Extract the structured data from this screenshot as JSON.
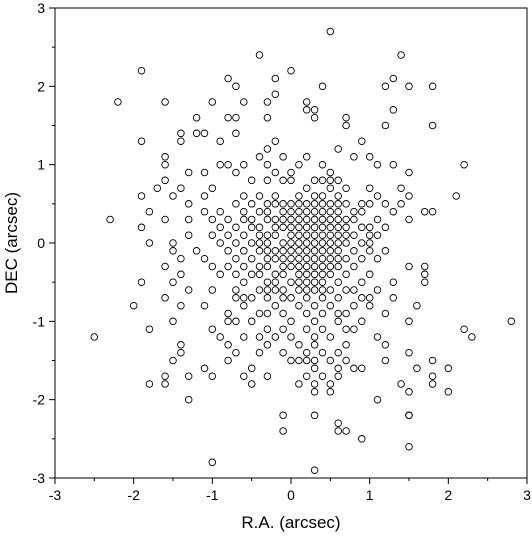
{
  "chart_data": {
    "type": "scatter",
    "title": "",
    "xlabel": "R.A. (arcsec)",
    "ylabel": "DEC (arcsec)",
    "xlim": [
      -3,
      3
    ],
    "ylim": [
      -3,
      3
    ],
    "x_ticks": [
      "-3",
      "-2",
      "-1",
      "0",
      "1",
      "2",
      "3"
    ],
    "y_ticks": [
      "-3",
      "-2",
      "-1",
      "0",
      "1",
      "2",
      "3"
    ],
    "grid": false,
    "legend": "none",
    "marker": "open-circle",
    "colors": {
      "marker": "#000000",
      "axes": "#000000",
      "background": "#ffffff"
    },
    "points": [
      [
        0.5,
        2.7
      ],
      [
        -0.4,
        2.4
      ],
      [
        1.4,
        2.4
      ],
      [
        -1.9,
        2.2
      ],
      [
        0.0,
        2.2
      ],
      [
        -2.2,
        1.8
      ],
      [
        -0.8,
        2.1
      ],
      [
        -0.2,
        2.1
      ],
      [
        1.3,
        2.1
      ],
      [
        -0.7,
        2.0
      ],
      [
        0.4,
        2.0
      ],
      [
        1.2,
        2.0
      ],
      [
        1.5,
        2.0
      ],
      [
        1.8,
        2.0
      ],
      [
        -0.2,
        1.9
      ],
      [
        -0.6,
        1.8
      ],
      [
        -1.6,
        1.8
      ],
      [
        -1.0,
        1.8
      ],
      [
        -0.3,
        1.8
      ],
      [
        0.2,
        1.8
      ],
      [
        0.2,
        1.7
      ],
      [
        0.3,
        1.7
      ],
      [
        1.3,
        1.7
      ],
      [
        -0.8,
        1.6
      ],
      [
        -0.7,
        1.6
      ],
      [
        -0.3,
        1.6
      ],
      [
        -1.2,
        1.6
      ],
      [
        0.3,
        1.6
      ],
      [
        0.7,
        1.6
      ],
      [
        -1.9,
        1.3
      ],
      [
        -1.4,
        1.4
      ],
      [
        -1.2,
        1.4
      ],
      [
        -1.1,
        1.4
      ],
      [
        -0.7,
        1.4
      ],
      [
        0.7,
        1.5
      ],
      [
        1.2,
        1.5
      ],
      [
        1.8,
        1.5
      ],
      [
        -1.4,
        1.3
      ],
      [
        -0.9,
        1.3
      ],
      [
        -0.2,
        1.3
      ],
      [
        0.9,
        1.3
      ],
      [
        -0.3,
        1.2
      ],
      [
        0.6,
        1.2
      ],
      [
        -0.4,
        1.1
      ],
      [
        -0.1,
        1.1
      ],
      [
        0.2,
        1.1
      ],
      [
        0.8,
        1.1
      ],
      [
        1.0,
        1.1
      ],
      [
        -1.6,
        1.1
      ],
      [
        -1.6,
        1.0
      ],
      [
        -0.6,
        1.0
      ],
      [
        -0.3,
        1.0
      ],
      [
        0.1,
        1.0
      ],
      [
        0.4,
        1.0
      ],
      [
        -0.8,
        1.0
      ],
      [
        1.1,
        1.0
      ],
      [
        1.3,
        1.0
      ],
      [
        2.2,
        1.0
      ],
      [
        -0.9,
        1.0
      ],
      [
        -0.7,
        0.9
      ],
      [
        -0.2,
        0.9
      ],
      [
        0.0,
        0.9
      ],
      [
        0.5,
        0.9
      ],
      [
        -1.3,
        0.9
      ],
      [
        -1.1,
        0.9
      ],
      [
        1.5,
        0.9
      ],
      [
        -1.6,
        0.8
      ],
      [
        -0.5,
        0.8
      ],
      [
        -0.3,
        0.8
      ],
      [
        -0.1,
        0.8
      ],
      [
        0.0,
        0.8
      ],
      [
        0.3,
        0.8
      ],
      [
        0.4,
        0.8
      ],
      [
        0.5,
        0.8
      ],
      [
        0.6,
        0.8
      ],
      [
        -1.7,
        0.7
      ],
      [
        -1.4,
        0.7
      ],
      [
        -1.0,
        0.7
      ],
      [
        0.2,
        0.7
      ],
      [
        0.5,
        0.7
      ],
      [
        0.7,
        0.7
      ],
      [
        1.0,
        0.7
      ],
      [
        1.4,
        0.7
      ],
      [
        -0.6,
        0.6
      ],
      [
        -0.4,
        0.6
      ],
      [
        -0.2,
        0.6
      ],
      [
        0.1,
        0.6
      ],
      [
        0.3,
        0.6
      ],
      [
        0.4,
        0.6
      ],
      [
        0.6,
        0.6
      ],
      [
        -1.9,
        0.6
      ],
      [
        -1.5,
        0.6
      ],
      [
        -1.1,
        0.6
      ],
      [
        1.1,
        0.6
      ],
      [
        1.5,
        0.6
      ],
      [
        2.1,
        0.6
      ],
      [
        -0.7,
        0.5
      ],
      [
        -0.5,
        0.5
      ],
      [
        -0.3,
        0.5
      ],
      [
        -0.2,
        0.5
      ],
      [
        -0.1,
        0.5
      ],
      [
        0.0,
        0.5
      ],
      [
        0.1,
        0.5
      ],
      [
        0.2,
        0.5
      ],
      [
        0.3,
        0.5
      ],
      [
        0.4,
        0.5
      ],
      [
        0.5,
        0.5
      ],
      [
        0.6,
        0.5
      ],
      [
        0.7,
        0.5
      ],
      [
        -1.3,
        0.5
      ],
      [
        0.9,
        0.5
      ],
      [
        1.0,
        0.5
      ],
      [
        1.2,
        0.5
      ],
      [
        1.4,
        0.5
      ],
      [
        -0.9,
        0.4
      ],
      [
        -0.6,
        0.4
      ],
      [
        -0.4,
        0.4
      ],
      [
        -0.3,
        0.4
      ],
      [
        -0.1,
        0.4
      ],
      [
        0.0,
        0.4
      ],
      [
        0.1,
        0.4
      ],
      [
        0.2,
        0.4
      ],
      [
        0.3,
        0.4
      ],
      [
        0.4,
        0.4
      ],
      [
        0.5,
        0.4
      ],
      [
        0.6,
        0.4
      ],
      [
        0.8,
        0.4
      ],
      [
        0.9,
        0.4
      ],
      [
        -1.8,
        0.4
      ],
      [
        -1.1,
        0.4
      ],
      [
        1.3,
        0.4
      ],
      [
        1.7,
        0.4
      ],
      [
        1.8,
        0.4
      ],
      [
        -0.8,
        0.3
      ],
      [
        -0.6,
        0.3
      ],
      [
        -0.5,
        0.3
      ],
      [
        -0.3,
        0.3
      ],
      [
        -0.2,
        0.3
      ],
      [
        -0.1,
        0.3
      ],
      [
        0.0,
        0.3
      ],
      [
        0.1,
        0.3
      ],
      [
        0.2,
        0.3
      ],
      [
        0.3,
        0.3
      ],
      [
        0.4,
        0.3
      ],
      [
        0.5,
        0.3
      ],
      [
        0.6,
        0.3
      ],
      [
        0.7,
        0.3
      ],
      [
        0.8,
        0.3
      ],
      [
        -2.3,
        0.3
      ],
      [
        -1.6,
        0.3
      ],
      [
        -1.3,
        0.3
      ],
      [
        -1.0,
        0.3
      ],
      [
        1.1,
        0.3
      ],
      [
        1.5,
        0.3
      ],
      [
        -0.7,
        0.2
      ],
      [
        -0.5,
        0.2
      ],
      [
        -0.4,
        0.2
      ],
      [
        -0.2,
        0.2
      ],
      [
        -0.1,
        0.2
      ],
      [
        0.0,
        0.2
      ],
      [
        0.1,
        0.2
      ],
      [
        0.2,
        0.2
      ],
      [
        0.3,
        0.2
      ],
      [
        0.4,
        0.2
      ],
      [
        0.5,
        0.2
      ],
      [
        0.6,
        0.2
      ],
      [
        0.7,
        0.2
      ],
      [
        0.9,
        0.2
      ],
      [
        -1.9,
        0.2
      ],
      [
        -0.9,
        0.2
      ],
      [
        1.0,
        0.2
      ],
      [
        1.2,
        0.2
      ],
      [
        -0.8,
        0.1
      ],
      [
        -0.6,
        0.1
      ],
      [
        -0.4,
        0.1
      ],
      [
        -0.3,
        0.1
      ],
      [
        -0.2,
        0.1
      ],
      [
        0.0,
        0.1
      ],
      [
        0.1,
        0.1
      ],
      [
        0.2,
        0.1
      ],
      [
        0.3,
        0.1
      ],
      [
        0.4,
        0.1
      ],
      [
        0.5,
        0.1
      ],
      [
        0.6,
        0.1
      ],
      [
        0.7,
        0.1
      ],
      [
        0.8,
        0.1
      ],
      [
        -1.3,
        0.1
      ],
      [
        -1.0,
        0.1
      ],
      [
        1.0,
        0.1
      ],
      [
        1.1,
        0.1
      ],
      [
        -0.7,
        0.0
      ],
      [
        -0.5,
        0.0
      ],
      [
        -0.4,
        0.0
      ],
      [
        -0.3,
        0.0
      ],
      [
        -0.1,
        0.0
      ],
      [
        0.0,
        0.0
      ],
      [
        0.1,
        0.0
      ],
      [
        0.2,
        0.0
      ],
      [
        0.3,
        0.0
      ],
      [
        0.4,
        0.0
      ],
      [
        0.5,
        0.0
      ],
      [
        0.6,
        0.0
      ],
      [
        0.7,
        0.0
      ],
      [
        0.9,
        0.0
      ],
      [
        -1.8,
        0.0
      ],
      [
        -1.5,
        0.0
      ],
      [
        -0.9,
        0.0
      ],
      [
        1.0,
        0.0
      ],
      [
        -0.8,
        -0.1
      ],
      [
        -0.6,
        -0.1
      ],
      [
        -0.4,
        -0.1
      ],
      [
        -0.3,
        -0.1
      ],
      [
        -0.2,
        -0.1
      ],
      [
        -0.1,
        -0.1
      ],
      [
        0.0,
        -0.1
      ],
      [
        0.1,
        -0.1
      ],
      [
        0.2,
        -0.1
      ],
      [
        0.3,
        -0.1
      ],
      [
        0.4,
        -0.1
      ],
      [
        0.5,
        -0.1
      ],
      [
        0.6,
        -0.1
      ],
      [
        0.8,
        -0.1
      ],
      [
        -1.5,
        -0.1
      ],
      [
        -1.2,
        -0.1
      ],
      [
        1.0,
        -0.1
      ],
      [
        1.2,
        -0.1
      ],
      [
        -0.7,
        -0.2
      ],
      [
        -0.5,
        -0.2
      ],
      [
        -0.3,
        -0.2
      ],
      [
        -0.2,
        -0.2
      ],
      [
        -0.1,
        -0.2
      ],
      [
        0.0,
        -0.2
      ],
      [
        0.1,
        -0.2
      ],
      [
        0.2,
        -0.2
      ],
      [
        0.3,
        -0.2
      ],
      [
        0.4,
        -0.2
      ],
      [
        0.5,
        -0.2
      ],
      [
        0.6,
        -0.2
      ],
      [
        0.7,
        -0.2
      ],
      [
        -1.4,
        -0.2
      ],
      [
        -1.1,
        -0.2
      ],
      [
        0.9,
        -0.2
      ],
      [
        1.1,
        -0.2
      ],
      [
        -0.6,
        -0.3
      ],
      [
        -0.4,
        -0.3
      ],
      [
        -0.3,
        -0.3
      ],
      [
        -0.1,
        -0.3
      ],
      [
        0.0,
        -0.3
      ],
      [
        0.1,
        -0.3
      ],
      [
        0.2,
        -0.3
      ],
      [
        0.3,
        -0.3
      ],
      [
        0.4,
        -0.3
      ],
      [
        0.5,
        -0.3
      ],
      [
        0.6,
        -0.3
      ],
      [
        0.8,
        -0.3
      ],
      [
        -1.6,
        -0.3
      ],
      [
        -1.0,
        -0.3
      ],
      [
        -0.8,
        -0.3
      ],
      [
        1.5,
        -0.3
      ],
      [
        1.7,
        -0.3
      ],
      [
        -0.7,
        -0.4
      ],
      [
        -0.5,
        -0.4
      ],
      [
        -0.4,
        -0.4
      ],
      [
        -0.2,
        -0.4
      ],
      [
        -0.1,
        -0.4
      ],
      [
        0.1,
        -0.4
      ],
      [
        0.2,
        -0.4
      ],
      [
        0.3,
        -0.4
      ],
      [
        0.4,
        -0.4
      ],
      [
        0.5,
        -0.4
      ],
      [
        0.7,
        -0.4
      ],
      [
        -1.4,
        -0.4
      ],
      [
        -0.9,
        -0.4
      ],
      [
        1.0,
        -0.4
      ],
      [
        1.7,
        -0.4
      ],
      [
        -0.6,
        -0.5
      ],
      [
        -0.3,
        -0.5
      ],
      [
        -0.2,
        -0.5
      ],
      [
        0.0,
        -0.5
      ],
      [
        0.1,
        -0.5
      ],
      [
        0.2,
        -0.5
      ],
      [
        0.3,
        -0.5
      ],
      [
        0.4,
        -0.5
      ],
      [
        0.6,
        -0.5
      ],
      [
        -1.9,
        -0.5
      ],
      [
        -1.5,
        -0.5
      ],
      [
        0.9,
        -0.5
      ],
      [
        1.3,
        -0.5
      ],
      [
        1.7,
        -0.5
      ],
      [
        -0.7,
        -0.6
      ],
      [
        -0.4,
        -0.6
      ],
      [
        -0.3,
        -0.6
      ],
      [
        -0.2,
        -0.6
      ],
      [
        -0.1,
        -0.6
      ],
      [
        0.1,
        -0.6
      ],
      [
        0.2,
        -0.6
      ],
      [
        0.3,
        -0.6
      ],
      [
        0.4,
        -0.6
      ],
      [
        0.5,
        -0.6
      ],
      [
        0.7,
        -0.6
      ],
      [
        0.8,
        -0.6
      ],
      [
        -1.3,
        -0.6
      ],
      [
        -1.0,
        -0.6
      ],
      [
        1.1,
        -0.6
      ],
      [
        -0.7,
        -0.7
      ],
      [
        -0.5,
        -0.7
      ],
      [
        -0.3,
        -0.7
      ],
      [
        -0.1,
        -0.7
      ],
      [
        0.0,
        -0.7
      ],
      [
        0.2,
        -0.7
      ],
      [
        0.4,
        -0.7
      ],
      [
        0.6,
        -0.7
      ],
      [
        -1.6,
        -0.7
      ],
      [
        -0.6,
        -0.7
      ],
      [
        0.9,
        -0.7
      ],
      [
        1.0,
        -0.7
      ],
      [
        1.3,
        -0.7
      ],
      [
        -0.6,
        -0.8
      ],
      [
        -0.2,
        -0.8
      ],
      [
        0.1,
        -0.8
      ],
      [
        0.3,
        -0.8
      ],
      [
        0.5,
        -0.8
      ],
      [
        0.8,
        -0.8
      ],
      [
        -2.0,
        -0.8
      ],
      [
        -1.4,
        -0.8
      ],
      [
        -1.1,
        -0.8
      ],
      [
        1.0,
        -0.8
      ],
      [
        1.6,
        -0.8
      ],
      [
        -0.8,
        -0.9
      ],
      [
        -0.4,
        -0.9
      ],
      [
        -0.3,
        -0.9
      ],
      [
        -0.1,
        -0.9
      ],
      [
        0.2,
        -0.9
      ],
      [
        0.4,
        -0.9
      ],
      [
        0.6,
        -0.9
      ],
      [
        0.7,
        -0.9
      ],
      [
        1.2,
        -0.9
      ],
      [
        -0.7,
        -1.0
      ],
      [
        -0.5,
        -1.0
      ],
      [
        0.0,
        -1.0
      ],
      [
        0.3,
        -1.0
      ],
      [
        0.6,
        -1.0
      ],
      [
        -1.5,
        -1.0
      ],
      [
        -0.8,
        -1.0
      ],
      [
        0.9,
        -1.0
      ],
      [
        1.5,
        -1.0
      ],
      [
        2.8,
        -1.0
      ],
      [
        -1.0,
        -1.1
      ],
      [
        -0.3,
        -1.1
      ],
      [
        -0.1,
        -1.1
      ],
      [
        0.2,
        -1.1
      ],
      [
        0.4,
        -1.1
      ],
      [
        0.7,
        -1.1
      ],
      [
        -1.8,
        -1.1
      ],
      [
        0.8,
        -1.1
      ],
      [
        2.2,
        -1.1
      ],
      [
        -0.6,
        -1.2
      ],
      [
        -0.4,
        -1.2
      ],
      [
        -0.2,
        -1.2
      ],
      [
        0.0,
        -1.2
      ],
      [
        0.3,
        -1.2
      ],
      [
        0.5,
        -1.2
      ],
      [
        -2.5,
        -1.2
      ],
      [
        -0.9,
        -1.2
      ],
      [
        1.1,
        -1.2
      ],
      [
        2.3,
        -1.2
      ],
      [
        -0.8,
        -1.3
      ],
      [
        -0.3,
        -1.3
      ],
      [
        0.1,
        -1.3
      ],
      [
        0.3,
        -1.3
      ],
      [
        0.7,
        -1.3
      ],
      [
        -1.4,
        -1.3
      ],
      [
        1.2,
        -1.3
      ],
      [
        -0.7,
        -1.4
      ],
      [
        -0.1,
        -1.4
      ],
      [
        0.2,
        -1.4
      ],
      [
        0.4,
        -1.4
      ],
      [
        0.6,
        -1.4
      ],
      [
        -1.4,
        -1.4
      ],
      [
        -0.4,
        -1.4
      ],
      [
        1.5,
        -1.4
      ],
      [
        -0.8,
        -1.5
      ],
      [
        0.0,
        -1.5
      ],
      [
        0.2,
        -1.5
      ],
      [
        0.3,
        -1.5
      ],
      [
        0.5,
        -1.5
      ],
      [
        -1.5,
        -1.5
      ],
      [
        0.1,
        -1.5
      ],
      [
        0.7,
        -1.5
      ],
      [
        1.2,
        -1.5
      ],
      [
        1.8,
        -1.5
      ],
      [
        -0.5,
        -1.6
      ],
      [
        0.3,
        -1.6
      ],
      [
        0.6,
        -1.6
      ],
      [
        -1.1,
        -1.6
      ],
      [
        0.8,
        -1.6
      ],
      [
        0.9,
        -1.6
      ],
      [
        1.6,
        -1.6
      ],
      [
        2.0,
        -1.6
      ],
      [
        -0.6,
        -1.7
      ],
      [
        -0.3,
        -1.7
      ],
      [
        0.2,
        -1.7
      ],
      [
        0.4,
        -1.7
      ],
      [
        -1.6,
        -1.7
      ],
      [
        -1.3,
        -1.7
      ],
      [
        -1.0,
        -1.7
      ],
      [
        0.6,
        -1.7
      ],
      [
        1.8,
        -1.7
      ],
      [
        -0.5,
        -1.8
      ],
      [
        0.1,
        -1.8
      ],
      [
        0.3,
        -1.8
      ],
      [
        0.5,
        -1.8
      ],
      [
        -1.8,
        -1.8
      ],
      [
        -1.6,
        -1.8
      ],
      [
        1.4,
        -1.8
      ],
      [
        1.8,
        -1.8
      ],
      [
        0.3,
        -1.9
      ],
      [
        0.5,
        -1.9
      ],
      [
        1.5,
        -1.9
      ],
      [
        2.0,
        -1.9
      ],
      [
        -1.3,
        -2.0
      ],
      [
        1.1,
        -2.0
      ],
      [
        0.3,
        -2.2
      ],
      [
        1.5,
        -2.2
      ],
      [
        -0.1,
        -2.2
      ],
      [
        1.5,
        -2.2
      ],
      [
        0.6,
        -2.3
      ],
      [
        -0.1,
        -2.4
      ],
      [
        0.6,
        -2.4
      ],
      [
        0.7,
        -2.4
      ],
      [
        0.9,
        -2.5
      ],
      [
        1.5,
        -2.6
      ],
      [
        -1.0,
        -2.8
      ],
      [
        0.3,
        -2.9
      ]
    ]
  }
}
